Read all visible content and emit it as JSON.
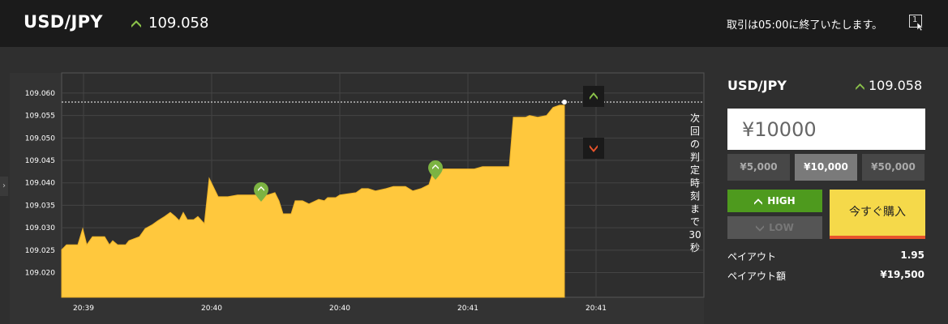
{
  "header": {
    "pair": "USD/JPY",
    "price": "109.058",
    "trend": "up",
    "notice": "取引は05:00に終了いたします。",
    "window_badge": "1"
  },
  "colors": {
    "up_green": "#8bc34a",
    "down_red": "#e8542c",
    "area_fill": "#ffc83d",
    "high_button": "#4e9a1e",
    "buy_button": "#f5d94a"
  },
  "chart": {
    "type": "area",
    "y_ticks": [
      "109.060",
      "109.055",
      "109.050",
      "109.045",
      "109.040",
      "109.035",
      "109.030",
      "109.025",
      "109.020"
    ],
    "x_ticks": [
      "20:39",
      "20:40",
      "20:40",
      "20:41",
      "20:41"
    ],
    "current_rate": 109.058,
    "countdown_label": "次回の判定時刻まで30秒",
    "high_marker_icon": "up-arrow-icon",
    "low_marker_icon": "down-arrow-icon",
    "entry_markers": [
      "up-pin-icon",
      "up-pin-icon"
    ]
  },
  "chart_data": {
    "type": "area",
    "ylim": [
      109.0145,
      109.0645
    ],
    "series": [
      {
        "values": [
          [
            0,
            109.0251
          ],
          [
            6,
            109.0262
          ],
          [
            20,
            109.0262
          ],
          [
            26,
            109.0298
          ],
          [
            31,
            109.0262
          ],
          [
            38,
            109.028
          ],
          [
            53,
            109.028
          ],
          [
            59,
            109.0262
          ],
          [
            63,
            109.0271
          ],
          [
            69,
            109.0262
          ],
          [
            79,
            109.0262
          ],
          [
            83,
            109.0271
          ],
          [
            96,
            109.028
          ],
          [
            103,
            109.0298
          ],
          [
            112,
            109.0307
          ],
          [
            119,
            109.0316
          ],
          [
            127,
            109.0325
          ],
          [
            134,
            109.0334
          ],
          [
            140,
            109.0325
          ],
          [
            145,
            109.0316
          ],
          [
            150,
            109.0334
          ],
          [
            155,
            109.0318
          ],
          [
            163,
            109.0318
          ],
          [
            168,
            109.0325
          ],
          [
            176,
            109.0309
          ],
          [
            182,
            109.041
          ],
          [
            193,
            109.0369
          ],
          [
            205,
            109.0369
          ],
          [
            217,
            109.0373
          ],
          [
            224,
            109.0373
          ],
          [
            233,
            109.0373
          ],
          [
            241,
            109.0373
          ],
          [
            254,
            109.0373
          ],
          [
            263,
            109.0378
          ],
          [
            268,
            109.036
          ],
          [
            273,
            109.0331
          ],
          [
            283,
            109.0331
          ],
          [
            288,
            109.036
          ],
          [
            297,
            109.036
          ],
          [
            305,
            109.0353
          ],
          [
            317,
            109.0363
          ],
          [
            324,
            109.036
          ],
          [
            328,
            109.0367
          ],
          [
            338,
            109.0367
          ],
          [
            343,
            109.0373
          ],
          [
            363,
            109.0378
          ],
          [
            370,
            109.0387
          ],
          [
            378,
            109.0387
          ],
          [
            387,
            109.0382
          ],
          [
            400,
            109.0387
          ],
          [
            409,
            109.0392
          ],
          [
            424,
            109.0392
          ],
          [
            433,
            109.0382
          ],
          [
            443,
            109.0387
          ],
          [
            453,
            109.0396
          ],
          [
            459,
            109.0431
          ],
          [
            479,
            109.0431
          ],
          [
            494,
            109.0431
          ],
          [
            509,
            109.0431
          ],
          [
            519,
            109.0436
          ],
          [
            552,
            109.0436
          ],
          [
            557,
            109.0546
          ],
          [
            572,
            109.0546
          ],
          [
            577,
            109.055
          ],
          [
            587,
            109.0546
          ],
          [
            598,
            109.055
          ],
          [
            606,
            109.0568
          ],
          [
            614,
            109.0573
          ],
          [
            620,
            109.0573
          ]
        ]
      }
    ]
  },
  "side": {
    "pair": "USD/JPY",
    "price": "109.058",
    "amount": "¥10000",
    "presets": [
      "¥5,000",
      "¥10,000",
      "¥50,000"
    ],
    "selected_preset": "¥10,000",
    "high_label": "HIGH",
    "low_label": "LOW",
    "buy_label": "今すぐ購入",
    "payout_label": "ペイアウト",
    "payout_value": "1.95",
    "payout_amount_label": "ペイアウト額",
    "payout_amount_value": "¥19,500"
  }
}
